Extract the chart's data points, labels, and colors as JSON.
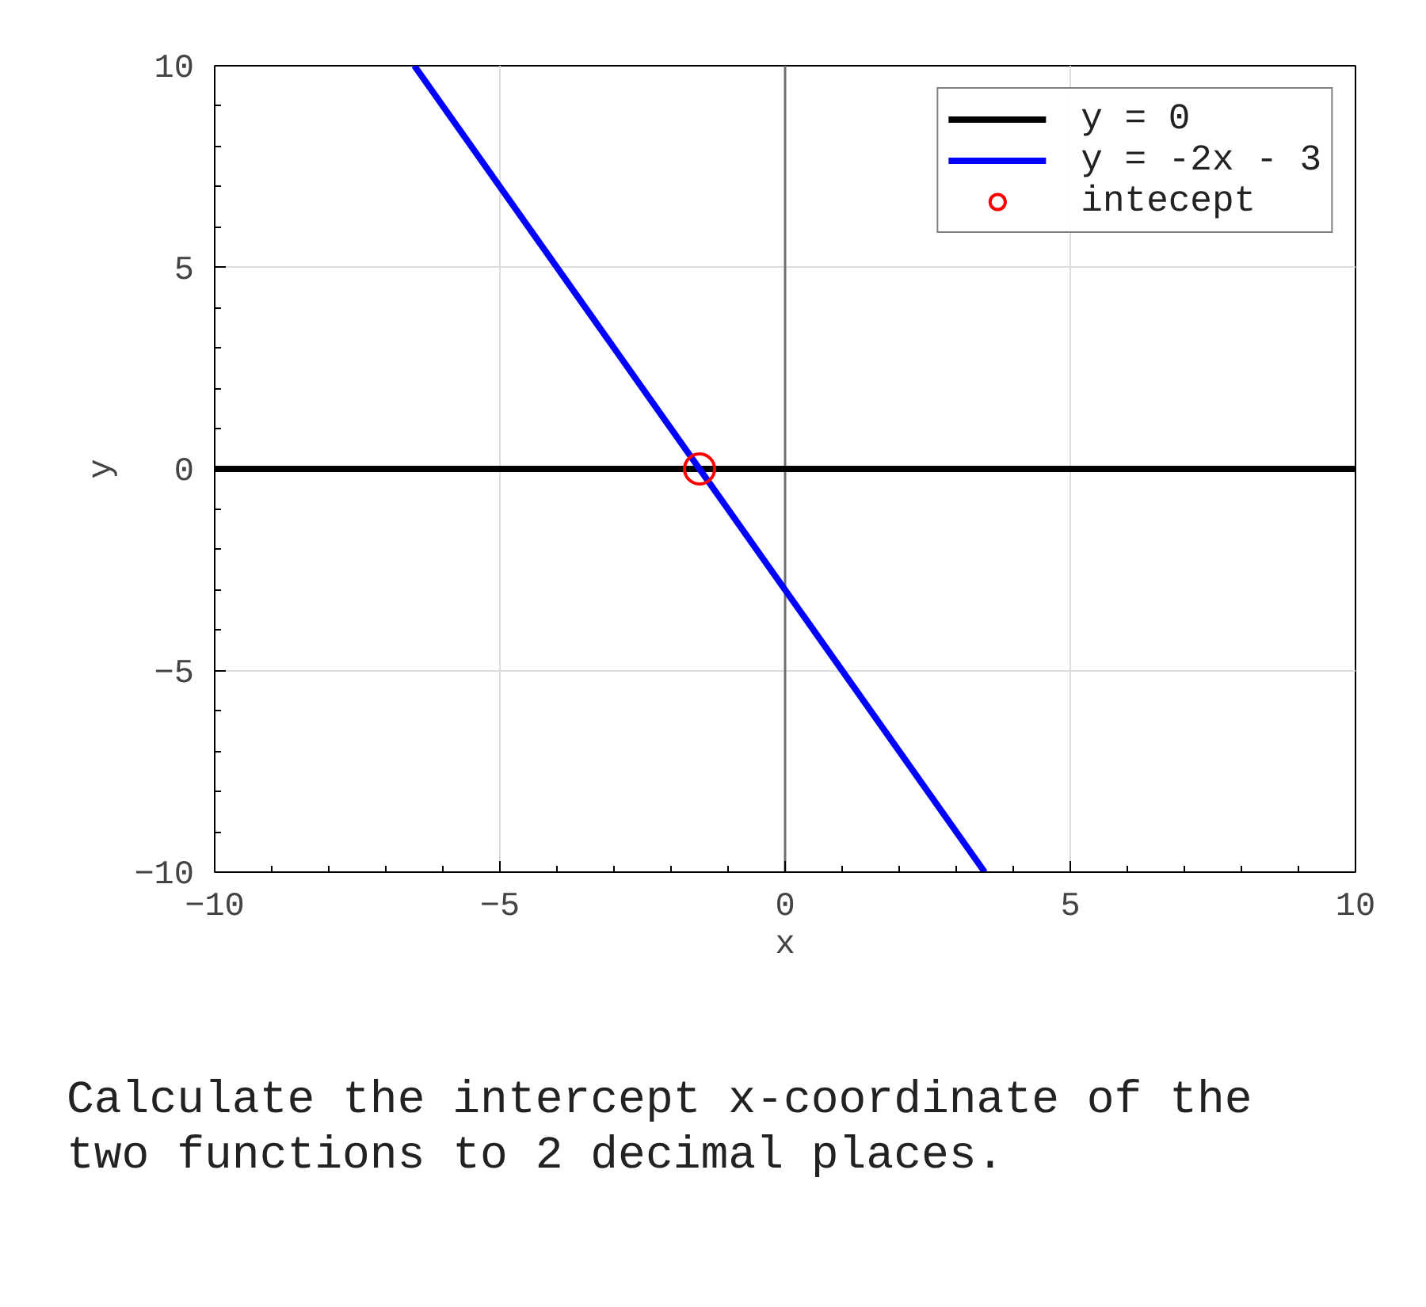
{
  "chart_data": {
    "type": "line",
    "xlabel": "x",
    "ylabel": "y",
    "xlim": [
      -10,
      10
    ],
    "ylim": [
      -10,
      10
    ],
    "xticks": [
      -10,
      -5,
      0,
      5,
      10
    ],
    "yticks": [
      -10,
      -5,
      0,
      5,
      10
    ],
    "grid": true,
    "legend": "top right",
    "series": [
      {
        "name": "y = 0",
        "color": "#000000",
        "x": [
          -10,
          10
        ],
        "values": [
          0,
          0
        ]
      },
      {
        "name": "y = -2x - 3",
        "color": "#0000ff",
        "x": [
          -6.5,
          3.5
        ],
        "values": [
          10,
          -10
        ]
      },
      {
        "name": "intecept",
        "type": "scatter",
        "marker": "circle",
        "color": "#ff0000",
        "x": [
          -1.5
        ],
        "values": [
          0
        ]
      }
    ],
    "ref_lines": [
      {
        "axis": "x",
        "value": 0,
        "color": "#707070"
      }
    ],
    "annotations": [
      "Calculate the intercept x-coordinate of the two functions to 2 decimal places."
    ]
  }
}
